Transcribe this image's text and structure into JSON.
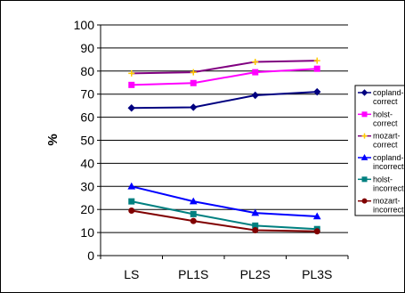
{
  "chart_data": {
    "type": "line",
    "title": "",
    "xlabel": "",
    "ylabel": "%",
    "ylim": [
      0,
      100
    ],
    "yticks": [
      "0",
      "10",
      "20",
      "30",
      "40",
      "50",
      "60",
      "70",
      "80",
      "90",
      "100"
    ],
    "categories": [
      "LS",
      "PL1S",
      "PL2S",
      "PL3S"
    ],
    "grid": "horizontal",
    "legend_position": "right",
    "series": [
      {
        "name": "copland-correct",
        "color": "#000080",
        "marker": "diamond",
        "values": [
          64,
          64.3,
          69.5,
          71
        ]
      },
      {
        "name": "holst-correct",
        "color": "#FF00FF",
        "marker": "square",
        "values": [
          74,
          74.8,
          79.5,
          81
        ]
      },
      {
        "name": "mozart-correct",
        "color": "#FFCC00",
        "marker": "plus",
        "line_color": "#800080",
        "values": [
          79,
          79.5,
          84,
          84.5
        ]
      },
      {
        "name": "copland-incorrect",
        "color": "#0000FF",
        "marker": "triangle",
        "values": [
          30,
          23.5,
          18.5,
          17
        ]
      },
      {
        "name": "holst-incorrect",
        "color": "#008080",
        "marker": "square",
        "values": [
          23.5,
          18,
          13,
          11.5
        ]
      },
      {
        "name": "mozart-incorrect",
        "color": "#800000",
        "marker": "circle",
        "values": [
          19.5,
          15,
          11,
          10.5
        ]
      }
    ]
  }
}
